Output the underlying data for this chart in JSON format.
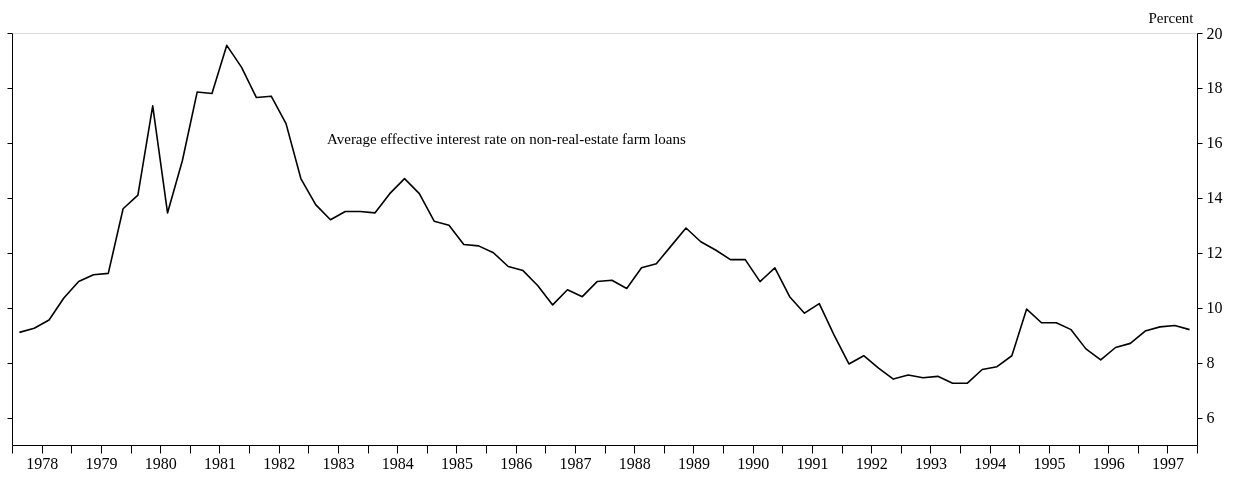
{
  "chart_data": {
    "type": "line",
    "annotations": [
      "Average effective interest rate on non-real-estate farm loans"
    ],
    "ylabel": "Percent",
    "x": [
      1978.125,
      1978.375,
      1978.625,
      1978.875,
      1979.125,
      1979.375,
      1979.625,
      1979.875,
      1980.125,
      1980.375,
      1980.625,
      1980.875,
      1981.125,
      1981.375,
      1981.625,
      1981.875,
      1982.125,
      1982.375,
      1982.625,
      1982.875,
      1983.125,
      1983.375,
      1983.625,
      1983.875,
      1984.125,
      1984.375,
      1984.625,
      1984.875,
      1985.125,
      1985.375,
      1985.625,
      1985.875,
      1986.125,
      1986.375,
      1986.625,
      1986.875,
      1987.125,
      1987.375,
      1987.625,
      1987.875,
      1988.125,
      1988.375,
      1988.625,
      1988.875,
      1989.125,
      1989.375,
      1989.625,
      1989.875,
      1990.125,
      1990.375,
      1990.625,
      1990.875,
      1991.125,
      1991.375,
      1991.625,
      1991.875,
      1992.125,
      1992.375,
      1992.625,
      1992.875,
      1993.125,
      1993.375,
      1993.625,
      1993.875,
      1994.125,
      1994.375,
      1994.625,
      1994.875,
      1995.125,
      1995.375,
      1995.625,
      1995.875,
      1996.125,
      1996.375,
      1996.625,
      1996.875,
      1997.125,
      1997.375,
      1997.625,
      1997.875
    ],
    "series": [
      {
        "color": "#000000",
        "values": [
          9.1,
          9.25,
          9.55,
          10.35,
          10.95,
          11.2,
          11.25,
          13.6,
          14.1,
          17.35,
          13.45,
          15.35,
          17.85,
          17.8,
          19.55,
          18.75,
          17.65,
          17.7,
          16.7,
          14.7,
          13.75,
          13.2,
          13.5,
          13.5,
          13.45,
          14.15,
          14.7,
          14.15,
          13.15,
          13.0,
          12.3,
          12.25,
          12.0,
          11.5,
          11.35,
          10.8,
          10.1,
          10.65,
          10.4,
          10.95,
          11.0,
          10.7,
          11.45,
          11.6,
          12.25,
          12.9,
          12.4,
          12.1,
          11.75,
          11.75,
          10.95,
          11.45,
          10.4,
          9.8,
          10.15,
          9.0,
          7.95,
          8.25,
          7.8,
          7.4,
          7.55,
          7.45,
          7.5,
          7.25,
          7.25,
          7.75,
          7.85,
          8.25,
          9.95,
          9.45,
          9.45,
          9.2,
          8.5,
          8.1,
          8.55,
          8.7,
          9.15,
          9.3,
          9.35,
          9.2
        ]
      }
    ],
    "xlim": [
      1978,
      1998
    ],
    "xticks": [
      {
        "value": 1978,
        "label": null
      },
      {
        "value": 1978.5,
        "label": "1978"
      },
      {
        "value": 1979,
        "label": null
      },
      {
        "value": 1979.5,
        "label": "1979"
      },
      {
        "value": 1980,
        "label": null
      },
      {
        "value": 1980.5,
        "label": "1980"
      },
      {
        "value": 1981,
        "label": null
      },
      {
        "value": 1981.5,
        "label": "1981"
      },
      {
        "value": 1982,
        "label": null
      },
      {
        "value": 1982.5,
        "label": "1982"
      },
      {
        "value": 1983,
        "label": null
      },
      {
        "value": 1983.5,
        "label": "1983"
      },
      {
        "value": 1984,
        "label": null
      },
      {
        "value": 1984.5,
        "label": "1984"
      },
      {
        "value": 1985,
        "label": null
      },
      {
        "value": 1985.5,
        "label": "1985"
      },
      {
        "value": 1986,
        "label": null
      },
      {
        "value": 1986.5,
        "label": "1986"
      },
      {
        "value": 1987,
        "label": null
      },
      {
        "value": 1987.5,
        "label": "1987"
      },
      {
        "value": 1988,
        "label": null
      },
      {
        "value": 1988.5,
        "label": "1988"
      },
      {
        "value": 1989,
        "label": null
      },
      {
        "value": 1989.5,
        "label": "1989"
      },
      {
        "value": 1990,
        "label": null
      },
      {
        "value": 1990.5,
        "label": "1990"
      },
      {
        "value": 1991,
        "label": null
      },
      {
        "value": 1991.5,
        "label": "1991"
      },
      {
        "value": 1992,
        "label": null
      },
      {
        "value": 1992.5,
        "label": "1992"
      },
      {
        "value": 1993,
        "label": null
      },
      {
        "value": 1993.5,
        "label": "1993"
      },
      {
        "value": 1994,
        "label": null
      },
      {
        "value": 1994.5,
        "label": "1994"
      },
      {
        "value": 1995,
        "label": null
      },
      {
        "value": 1995.5,
        "label": "1995"
      },
      {
        "value": 1996,
        "label": null
      },
      {
        "value": 1996.5,
        "label": "1996"
      },
      {
        "value": 1997,
        "label": null
      },
      {
        "value": 1997.5,
        "label": "1997"
      },
      {
        "value": 1998,
        "label": null
      }
    ],
    "ylim": [
      5,
      20
    ],
    "yticks": [
      6,
      8,
      10,
      12,
      14,
      16,
      18,
      20
    ],
    "grid": false,
    "line_style": "solid"
  }
}
